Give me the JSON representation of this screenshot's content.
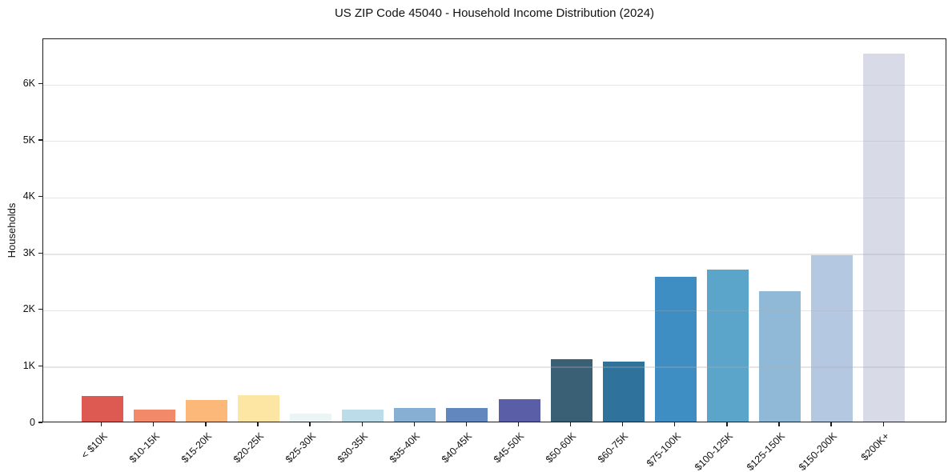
{
  "chart_data": {
    "type": "bar",
    "title": "US ZIP Code 45040 - Household Income Distribution (2024)",
    "xlabel": "",
    "ylabel": "Households",
    "categories": [
      "< $10K",
      "$10-15K",
      "$15-20K",
      "$20-25K",
      "$25-30K",
      "$30-35K",
      "$35-40K",
      "$40-45K",
      "$45-50K",
      "$50-60K",
      "$60-75K",
      "$75-100K",
      "$100-125K",
      "$125-150K",
      "$150-200K",
      "$200K+"
    ],
    "values": [
      460,
      220,
      380,
      475,
      140,
      215,
      245,
      240,
      400,
      1110,
      1065,
      2570,
      2690,
      2310,
      2950,
      6520
    ],
    "bar_colors": [
      "#dc5a52",
      "#f28a6a",
      "#fbb878",
      "#fde5a4",
      "#ecf5f5",
      "#bddcea",
      "#87aed3",
      "#6187be",
      "#5a5ea7",
      "#3a6076",
      "#2f739c",
      "#3e8ec4",
      "#5ba4ca",
      "#90b9d8",
      "#b5c8e1",
      "#d8dae8"
    ],
    "ytick_labels": [
      "0",
      "1K",
      "2K",
      "3K",
      "4K",
      "5K",
      "6K"
    ],
    "ytick_values": [
      0,
      1000,
      2000,
      3000,
      4000,
      5000,
      6000
    ],
    "ylim": [
      0,
      6800
    ],
    "grid": "horizontal",
    "gridline_color": "#b0b0b0",
    "spine_color": "#1c1c1c",
    "background_color": "#ffffff",
    "legend_position": "none"
  }
}
